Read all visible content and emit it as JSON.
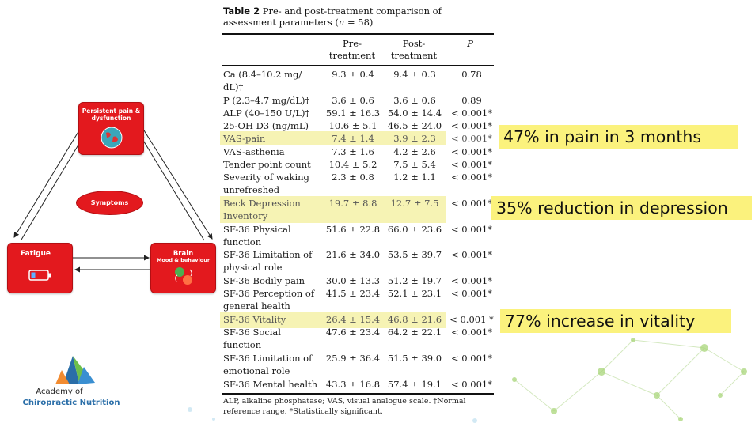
{
  "diagram": {
    "top_box": "Persistent pain & dysfunction",
    "left_box": "Fatigue",
    "right_box_title": "Brain",
    "right_box_sub": "Mood & behaviour",
    "center": "Symptoms",
    "icons": {
      "top": "globe-pain-icon",
      "left": "battery-low-icon",
      "right": "mood-faces-icon"
    }
  },
  "logo": {
    "line1": "Academy of",
    "line2": "Chiropractic Nutrition"
  },
  "table": {
    "title_bold": "Table 2",
    "title_rest": "Pre- and post-treatment comparison of assessment parameters (",
    "n_label": "n",
    "n_value": " = 58)",
    "headers": {
      "pre_line1": "Pre-",
      "pre_line2": "treatment",
      "post_line1": "Post-",
      "post_line2": "treatment",
      "p": "P"
    },
    "rows": [
      {
        "label": "Ca (8.4–10.2 mg/ dL)†",
        "pre": "9.3 ± 0.4",
        "post": "9.4 ± 0.3",
        "p": "0.78"
      },
      {
        "label": "P (2.3–4.7 mg/dL)†",
        "pre": "3.6 ± 0.6",
        "post": "3.6 ± 0.6",
        "p": "0.89"
      },
      {
        "label": "ALP (40–150 U/L)†",
        "pre": "59.1 ± 16.3",
        "post": "54.0 ± 14.4",
        "p": "< 0.001*"
      },
      {
        "label": "25-OH D3 (ng/mL)",
        "pre": "10.6 ± 5.1",
        "post": "46.5 ± 24.0",
        "p": "< 0.001*"
      },
      {
        "label": "VAS-pain",
        "pre": "7.4 ± 1.4",
        "post": "3.9 ± 2.3",
        "p": "< 0.001*"
      },
      {
        "label": "VAS-asthenia",
        "pre": "7.3 ± 1.6",
        "post": "4.2 ± 2.6",
        "p": "< 0.001*"
      },
      {
        "label": "Tender point count",
        "pre": "10.4 ± 5.2",
        "post": "7.5 ± 5.4",
        "p": "< 0.001*"
      },
      {
        "label": "Severity of waking unrefreshed",
        "pre": "2.3 ± 0.8",
        "post": "1.2 ± 1.1",
        "p": "< 0.001*"
      },
      {
        "label": "Beck Depression Inventory",
        "pre": "19.7 ± 8.8",
        "post": "12.7 ± 7.5",
        "p": "< 0.001*"
      },
      {
        "label": "SF-36 Physical function",
        "pre": "51.6 ± 22.8",
        "post": "66.0 ± 23.6",
        "p": "< 0.001*"
      },
      {
        "label": "SF-36 Limitation of physical role",
        "pre": "21.6 ± 34.0",
        "post": "53.5 ± 39.7",
        "p": "< 0.001*"
      },
      {
        "label": "SF-36 Bodily pain",
        "pre": "30.0 ± 13.3",
        "post": "51.2 ± 19.7",
        "p": "< 0.001*"
      },
      {
        "label": "SF-36 Perception of general health",
        "pre": "41.5 ± 23.4",
        "post": "52.1 ± 23.1",
        "p": "< 0.001*"
      },
      {
        "label": "SF-36 Vitality",
        "pre": "26.4 ± 15.4",
        "post": "46.8 ± 21.6",
        "p": "< 0.001 *"
      },
      {
        "label": "SF-36 Social function",
        "pre": "47.6 ± 23.4",
        "post": "64.2 ± 22.1",
        "p": "< 0.001*"
      },
      {
        "label": "SF-36 Limitation of emotional role",
        "pre": "25.9 ± 36.4",
        "post": "51.5 ± 39.0",
        "p": "< 0.001*"
      },
      {
        "label": "SF-36 Mental health",
        "pre": "43.3 ± 16.8",
        "post": "57.4 ± 19.1",
        "p": "< 0.001*"
      }
    ],
    "footnote": "ALP, alkaline phosphatase; VAS, visual analogue scale. †Normal reference range. *Statistically significant."
  },
  "callouts": [
    "47% in pain in 3 months",
    "35% reduction in depression",
    "77% increase in vitality"
  ],
  "colors": {
    "diagram_red": "#e3191e",
    "highlight": "#f6f3b4",
    "callout_yellow": "#fbf27d"
  }
}
